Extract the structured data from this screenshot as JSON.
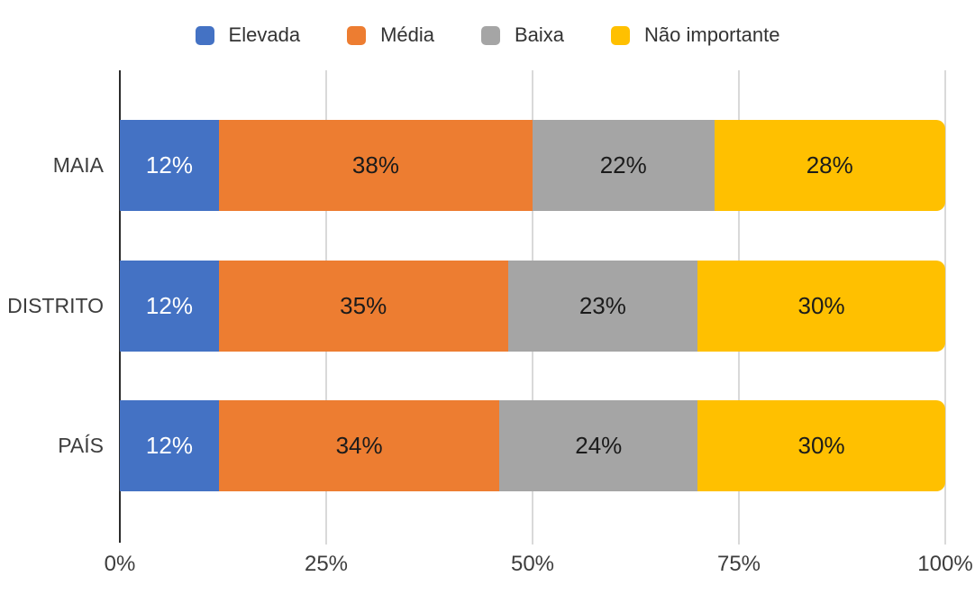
{
  "chart_data": {
    "type": "bar",
    "orientation": "horizontal",
    "stacked": true,
    "title": "",
    "xlabel": "",
    "ylabel": "",
    "xlim": [
      0,
      100
    ],
    "grid": "vertical",
    "legend_position": "top",
    "value_suffix": "%",
    "categories": [
      "MAIA",
      "DISTRITO",
      "PAÍS"
    ],
    "series": [
      {
        "name": "Elevada",
        "color": "#4472C4",
        "label_color": "#FFFFFF",
        "values": [
          12,
          12,
          12
        ]
      },
      {
        "name": "Média",
        "color": "#ED7D31",
        "label_color": "#1B1B1B",
        "values": [
          38,
          35,
          34
        ]
      },
      {
        "name": "Baixa",
        "color": "#A5A5A5",
        "label_color": "#1B1B1B",
        "values": [
          22,
          23,
          24
        ]
      },
      {
        "name": "Não importante",
        "color": "#FFC000",
        "label_color": "#1B1B1B",
        "values": [
          28,
          30,
          30
        ]
      }
    ],
    "x_axis": {
      "ticks": [
        {
          "label": "0%",
          "value": 0
        },
        {
          "label": "25%",
          "value": 25
        },
        {
          "label": "50%",
          "value": 50
        },
        {
          "label": "75%",
          "value": 75
        },
        {
          "label": "100%",
          "value": 100
        }
      ]
    },
    "colors": {
      "axis_line": "#2b2b2b",
      "gridline": "#d9d9d9",
      "tick_text": "#3d3d3d",
      "legend_text": "#333333",
      "background": "#ffffff"
    }
  }
}
